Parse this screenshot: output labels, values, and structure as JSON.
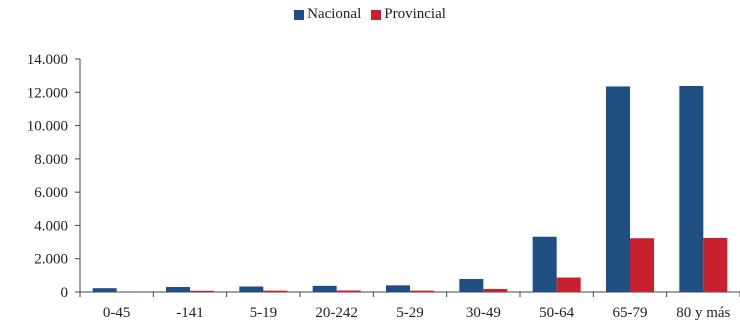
{
  "chart_data": {
    "type": "bar",
    "title": "",
    "xlabel": "",
    "ylabel": "",
    "categories": [
      "0-45",
      "-141",
      "5-19",
      "20-242",
      "5-29",
      "30-49",
      "50-64",
      "65-79",
      "80 y más"
    ],
    "series": [
      {
        "name": "Nacional",
        "color": "#1f4e82",
        "values": [
          230,
          300,
          330,
          370,
          400,
          780,
          3320,
          12350,
          12380
        ]
      },
      {
        "name": "Provincial",
        "color": "#c8202f",
        "values": [
          20,
          70,
          80,
          90,
          80,
          180,
          870,
          3230,
          3250
        ]
      }
    ],
    "ylim": [
      0,
      14000
    ],
    "yticks": [
      0,
      2000,
      4000,
      6000,
      8000,
      10000,
      12000,
      14000
    ],
    "ytick_labels": [
      "0",
      "2.000",
      "4.000",
      "6.000",
      "8.000",
      "10.000",
      "12.000",
      "14.000"
    ],
    "grid": false,
    "legend_position": "top-center"
  }
}
